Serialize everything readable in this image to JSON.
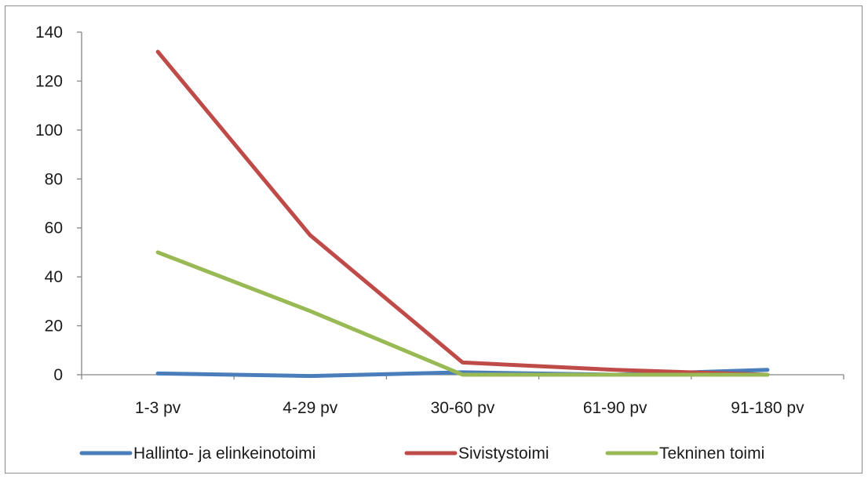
{
  "chart_data": {
    "type": "line",
    "title": "",
    "xlabel": "",
    "ylabel": "",
    "categories": [
      "1-3 pv",
      "4-29 pv",
      "30-60 pv",
      "61-90 pv",
      "91-180 pv"
    ],
    "ylim": [
      0,
      140
    ],
    "yticks": [
      0,
      20,
      40,
      60,
      80,
      100,
      120,
      140
    ],
    "grid": false,
    "legend_position": "bottom",
    "series": [
      {
        "name": "Hallinto- ja elinkeinotoimi",
        "color": "#4a7ebb",
        "values": [
          0.5,
          -0.5,
          1,
          0,
          2
        ]
      },
      {
        "name": "Sivistystoimi",
        "color": "#be4b48",
        "values": [
          132,
          57,
          5,
          2,
          0
        ]
      },
      {
        "name": "Tekninen toimi",
        "color": "#98b954",
        "values": [
          50,
          26,
          0,
          0,
          0
        ]
      }
    ]
  }
}
